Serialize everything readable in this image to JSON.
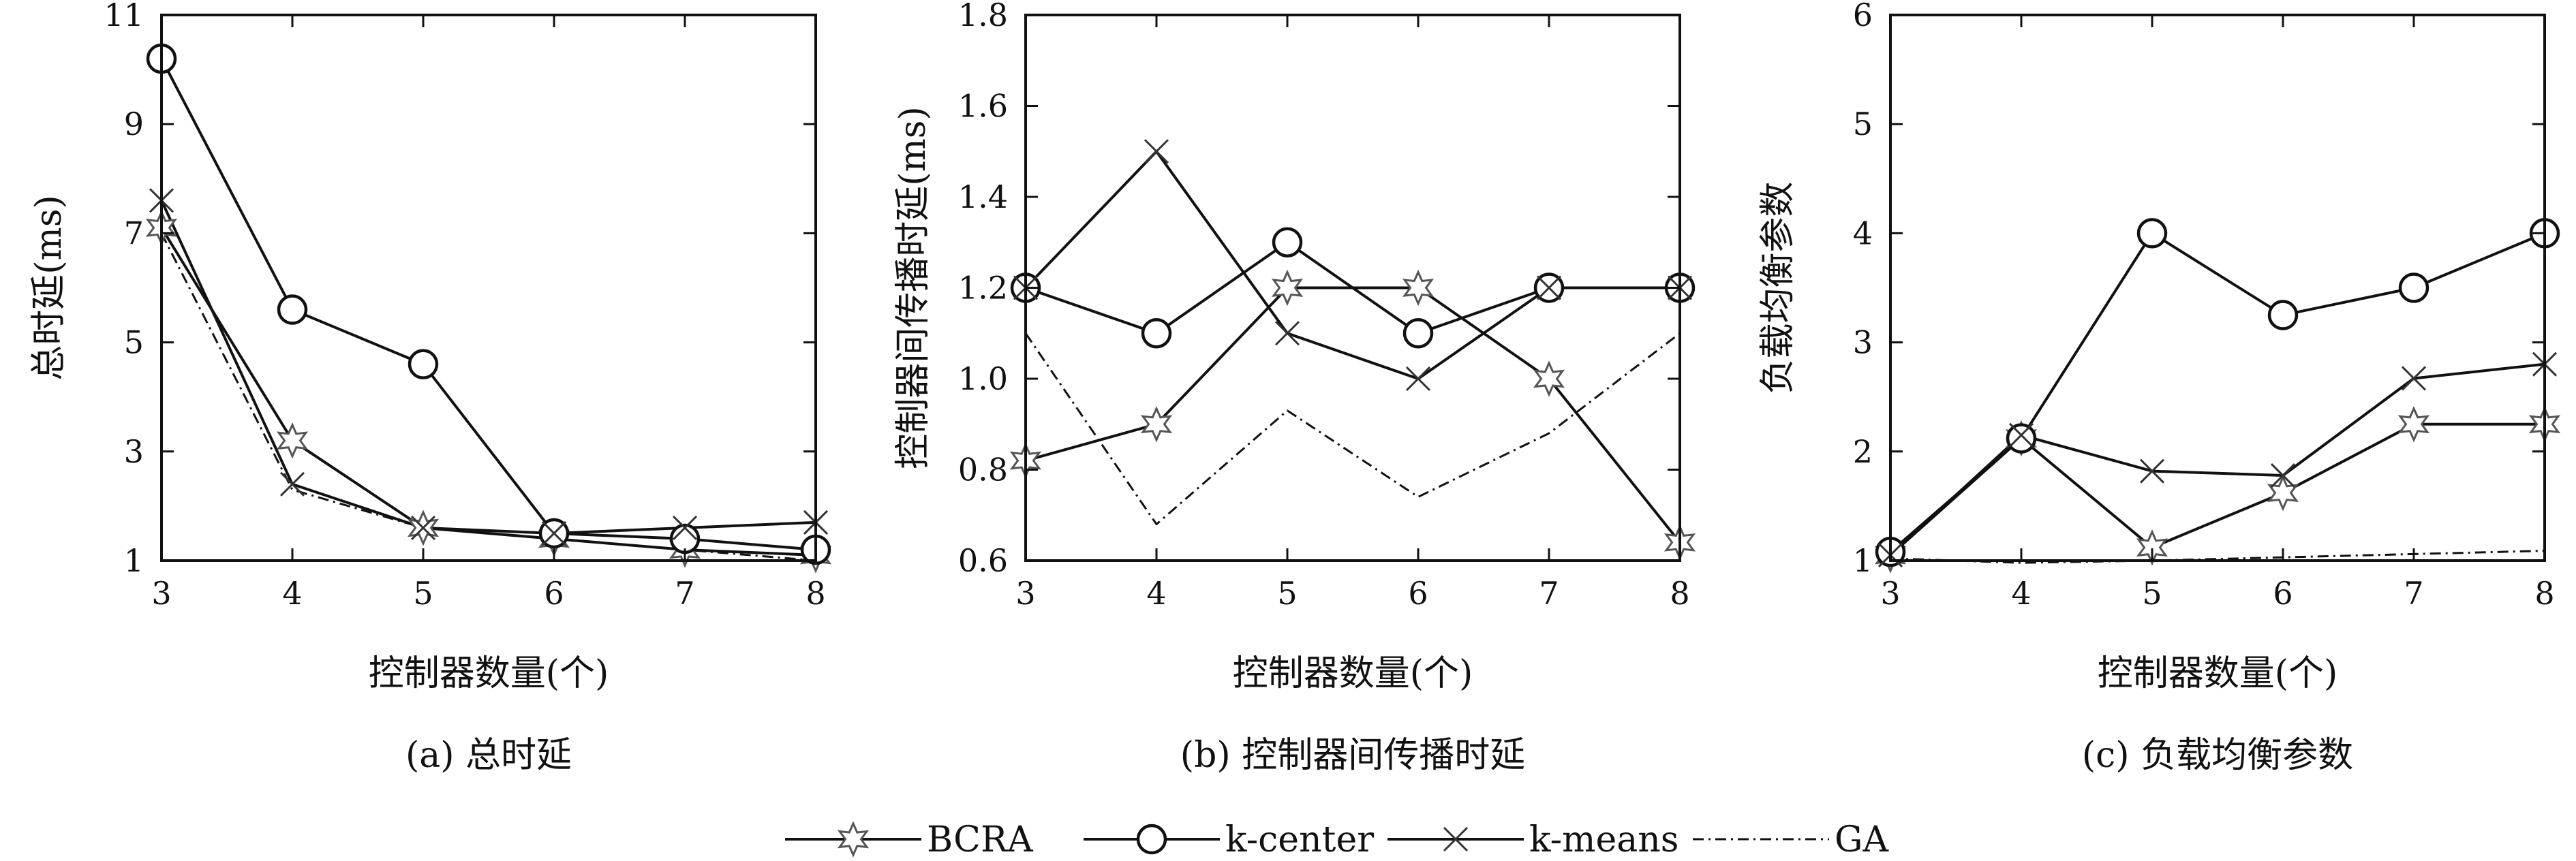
{
  "legend": [
    {
      "label": "BCRA",
      "marker": "star",
      "dash": "solid"
    },
    {
      "label": "k-center",
      "marker": "circle",
      "dash": "solid"
    },
    {
      "label": "k-means",
      "marker": "cross",
      "dash": "solid"
    },
    {
      "label": "GA",
      "marker": "none",
      "dash": "dashdot"
    }
  ],
  "chart_data": [
    {
      "type": "line",
      "caption": "(a) 总时延",
      "xlabel": "控制器数量(个)",
      "ylabel": "总时延(ms)",
      "x": [
        3,
        4,
        5,
        6,
        7,
        8
      ],
      "xlim": [
        3,
        8
      ],
      "ylim": [
        1,
        11
      ],
      "xticks": [
        "3",
        "4",
        "5",
        "6",
        "7",
        "8"
      ],
      "yticks": [
        "1",
        "3",
        "5",
        "7",
        "9",
        "11"
      ],
      "series": [
        {
          "name": "BCRA",
          "values": [
            7.1,
            3.2,
            1.6,
            1.4,
            1.2,
            1.1
          ]
        },
        {
          "name": "k-center",
          "values": [
            10.2,
            5.6,
            4.6,
            1.5,
            1.4,
            1.2
          ]
        },
        {
          "name": "k-means",
          "values": [
            7.6,
            2.4,
            1.6,
            1.5,
            1.6,
            1.7
          ]
        },
        {
          "name": "GA",
          "values": [
            7.0,
            2.3,
            1.6,
            1.4,
            1.2,
            1.0
          ]
        }
      ]
    },
    {
      "type": "line",
      "caption": "(b) 控制器间传播时延",
      "xlabel": "控制器数量(个)",
      "ylabel": "控制器间传播时延(ms)",
      "x": [
        3,
        4,
        5,
        6,
        7,
        8
      ],
      "xlim": [
        3,
        8
      ],
      "ylim": [
        0.6,
        1.8
      ],
      "xticks": [
        "3",
        "4",
        "5",
        "6",
        "7",
        "8"
      ],
      "yticks": [
        "0.6",
        "0.8",
        "1.0",
        "1.2",
        "1.4",
        "1.6",
        "1.8"
      ],
      "series": [
        {
          "name": "BCRA",
          "values": [
            0.82,
            0.9,
            1.2,
            1.2,
            1.0,
            0.64
          ]
        },
        {
          "name": "k-center",
          "values": [
            1.2,
            1.1,
            1.3,
            1.1,
            1.2,
            1.2
          ]
        },
        {
          "name": "k-means",
          "values": [
            1.2,
            1.5,
            1.1,
            1.0,
            1.2,
            1.2
          ]
        },
        {
          "name": "GA",
          "values": [
            1.1,
            0.68,
            0.93,
            0.74,
            0.88,
            1.1
          ]
        }
      ]
    },
    {
      "type": "line",
      "caption": "(c) 负载均衡参数",
      "xlabel": "控制器数量(个)",
      "ylabel": "负载均衡参数",
      "x": [
        3,
        4,
        5,
        6,
        7,
        8
      ],
      "xlim": [
        3,
        8
      ],
      "ylim": [
        1,
        6
      ],
      "xticks": [
        "3",
        "4",
        "5",
        "6",
        "7",
        "8"
      ],
      "yticks": [
        "1",
        "2",
        "3",
        "4",
        "5",
        "6"
      ],
      "series": [
        {
          "name": "BCRA",
          "values": [
            1.05,
            2.12,
            1.12,
            1.62,
            2.25,
            2.25
          ]
        },
        {
          "name": "k-center",
          "values": [
            1.08,
            2.12,
            4.0,
            3.25,
            3.5,
            4.0
          ]
        },
        {
          "name": "k-means",
          "values": [
            1.05,
            2.15,
            1.82,
            1.78,
            2.67,
            2.8
          ]
        },
        {
          "name": "GA",
          "values": [
            1.02,
            0.98,
            1.0,
            1.03,
            1.06,
            1.09
          ]
        }
      ]
    }
  ]
}
